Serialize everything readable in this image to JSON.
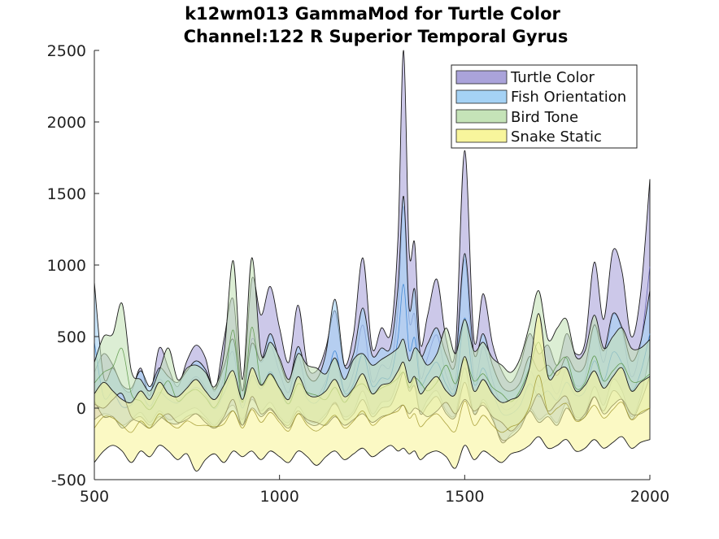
{
  "chart_data": {
    "type": "area",
    "title_lines": [
      "k12wm013 GammaMod for Turtle Color",
      "Channel:122 R Superior Temporal Gyrus"
    ],
    "xlabel": "",
    "ylabel": "",
    "xlim": [
      500,
      2000
    ],
    "ylim": [
      -500,
      2500
    ],
    "xticks": [
      500,
      1000,
      1500,
      2000
    ],
    "yticks": [
      -500,
      0,
      500,
      1000,
      1500,
      2000,
      2500
    ],
    "grid": false,
    "legend_position": "top-right",
    "series": [
      {
        "name": "Turtle Color",
        "color": "#aaa3da",
        "x": [
          500,
          525,
          550,
          575,
          600,
          625,
          650,
          675,
          700,
          725,
          750,
          775,
          800,
          825,
          850,
          875,
          900,
          925,
          950,
          975,
          1000,
          1025,
          1050,
          1075,
          1100,
          1125,
          1150,
          1175,
          1200,
          1225,
          1250,
          1275,
          1300,
          1320,
          1335,
          1350,
          1365,
          1380,
          1400,
          1425,
          1450,
          1475,
          1500,
          1525,
          1550,
          1575,
          1600,
          1625,
          1650,
          1675,
          1700,
          1725,
          1750,
          1775,
          1800,
          1825,
          1850,
          1875,
          1900,
          1925,
          1950,
          1975,
          2000
        ],
        "upper": [
          250,
          380,
          300,
          150,
          120,
          280,
          90,
          420,
          280,
          150,
          330,
          440,
          350,
          120,
          480,
          760,
          120,
          900,
          650,
          850,
          560,
          320,
          720,
          300,
          260,
          420,
          680,
          300,
          520,
          1050,
          420,
          560,
          530,
          1200,
          2500,
          1100,
          1150,
          450,
          650,
          900,
          480,
          420,
          1800,
          480,
          800,
          450,
          260,
          180,
          300,
          520,
          380,
          440,
          300,
          520,
          380,
          460,
          1020,
          620,
          1100,
          950,
          500,
          800,
          1600
        ],
        "lower": [
          -80,
          -40,
          -60,
          -120,
          -80,
          -30,
          -100,
          -20,
          -80,
          -60,
          -20,
          0,
          -60,
          -120,
          -40,
          20,
          -80,
          60,
          -20,
          40,
          -60,
          -100,
          10,
          -80,
          -100,
          -40,
          30,
          -60,
          -20,
          120,
          -40,
          40,
          60,
          200,
          320,
          140,
          160,
          -20,
          60,
          120,
          -20,
          -40,
          280,
          -40,
          60,
          -60,
          -240,
          -180,
          -120,
          0,
          -80,
          -40,
          -100,
          40,
          -60,
          -40,
          150,
          20,
          200,
          120,
          -60,
          80,
          380
        ],
        "line": [
          80,
          170,
          120,
          10,
          20,
          120,
          -10,
          200,
          100,
          40,
          150,
          220,
          140,
          0,
          220,
          390,
          20,
          480,
          320,
          440,
          250,
          110,
          360,
          110,
          80,
          190,
          350,
          120,
          250,
          580,
          190,
          300,
          300,
          700,
          1410,
          620,
          650,
          215,
          355,
          510,
          230,
          190,
          1040,
          220,
          430,
          195,
          10,
          0,
          90,
          260,
          150,
          200,
          100,
          280,
          160,
          210,
          585,
          320,
          650,
          535,
          220,
          440,
          990
        ]
      },
      {
        "name": "Fish Orientation",
        "color": "#a5d2f5",
        "x": [
          500,
          525,
          550,
          575,
          600,
          625,
          650,
          675,
          700,
          725,
          750,
          775,
          800,
          825,
          850,
          875,
          900,
          925,
          950,
          975,
          1000,
          1025,
          1050,
          1075,
          1100,
          1125,
          1150,
          1175,
          1200,
          1225,
          1250,
          1275,
          1300,
          1320,
          1335,
          1350,
          1365,
          1380,
          1400,
          1425,
          1450,
          1475,
          1500,
          1525,
          1550,
          1575,
          1600,
          1625,
          1650,
          1675,
          1700,
          1725,
          1750,
          1775,
          1800,
          1825,
          1850,
          1875,
          1900,
          1925,
          1950,
          1975,
          2000
        ],
        "upper": [
          880,
          220,
          280,
          160,
          140,
          260,
          150,
          280,
          220,
          180,
          260,
          330,
          270,
          130,
          290,
          480,
          120,
          450,
          330,
          520,
          330,
          180,
          430,
          230,
          200,
          380,
          760,
          300,
          380,
          700,
          370,
          420,
          430,
          850,
          1480,
          700,
          830,
          380,
          450,
          560,
          370,
          320,
          1080,
          380,
          520,
          300,
          150,
          120,
          180,
          360,
          260,
          300,
          230,
          360,
          260,
          300,
          580,
          400,
          660,
          560,
          330,
          460,
          820
        ],
        "lower": [
          50,
          -60,
          -60,
          -140,
          -90,
          -60,
          -120,
          -60,
          -100,
          -110,
          -60,
          -40,
          -80,
          -140,
          -80,
          -20,
          -120,
          0,
          -60,
          -10,
          -80,
          -120,
          -20,
          -100,
          -120,
          -60,
          40,
          -80,
          -40,
          60,
          -60,
          0,
          20,
          140,
          250,
          120,
          150,
          -40,
          20,
          80,
          -40,
          -60,
          180,
          -40,
          40,
          -80,
          -220,
          -200,
          -140,
          -20,
          -100,
          -60,
          -120,
          0,
          -80,
          -60,
          80,
          -20,
          120,
          60,
          -80,
          40,
          220
        ],
        "line": [
          460,
          80,
          110,
          10,
          25,
          100,
          15,
          110,
          60,
          35,
          100,
          145,
          95,
          -5,
          105,
          230,
          0,
          225,
          135,
          255,
          125,
          30,
          205,
          65,
          40,
          160,
          400,
          110,
          170,
          380,
          155,
          210,
          225,
          495,
          865,
          410,
          490,
          170,
          235,
          320,
          165,
          130,
          630,
          170,
          280,
          110,
          -35,
          -40,
          20,
          170,
          80,
          120,
          55,
          180,
          90,
          120,
          330,
          190,
          390,
          310,
          125,
          250,
          520
        ]
      },
      {
        "name": "Bird Tone",
        "color": "#c5e3b8",
        "x": [
          500,
          525,
          550,
          575,
          600,
          625,
          650,
          675,
          700,
          725,
          750,
          775,
          800,
          825,
          850,
          875,
          900,
          925,
          950,
          975,
          1000,
          1025,
          1050,
          1075,
          1100,
          1125,
          1150,
          1175,
          1200,
          1225,
          1250,
          1275,
          1300,
          1320,
          1335,
          1350,
          1365,
          1380,
          1400,
          1425,
          1450,
          1475,
          1500,
          1525,
          1550,
          1575,
          1600,
          1625,
          1650,
          1675,
          1700,
          1725,
          1750,
          1775,
          1800,
          1825,
          1850,
          1875,
          1900,
          1925,
          1950,
          1975,
          2000
        ],
        "upper": [
          320,
          500,
          520,
          730,
          260,
          200,
          120,
          260,
          420,
          200,
          280,
          300,
          250,
          150,
          380,
          1030,
          200,
          1050,
          380,
          460,
          350,
          200,
          380,
          300,
          280,
          240,
          350,
          200,
          340,
          380,
          300,
          340,
          380,
          420,
          480,
          330,
          420,
          380,
          300,
          380,
          560,
          380,
          620,
          400,
          460,
          350,
          300,
          250,
          350,
          580,
          820,
          480,
          560,
          620,
          360,
          400,
          650,
          420,
          500,
          560,
          420,
          420,
          480
        ],
        "lower": [
          30,
          0,
          60,
          100,
          -60,
          -100,
          -140,
          -80,
          -40,
          -100,
          -80,
          -40,
          -100,
          -140,
          -60,
          60,
          -120,
          80,
          -40,
          0,
          -80,
          -140,
          -40,
          -80,
          -100,
          -120,
          -60,
          -120,
          -80,
          -40,
          -100,
          -60,
          -40,
          0,
          20,
          -40,
          0,
          -20,
          -60,
          -20,
          40,
          -40,
          60,
          -20,
          20,
          -60,
          -100,
          -160,
          -100,
          -20,
          100,
          -20,
          40,
          80,
          -80,
          -40,
          80,
          -40,
          20,
          60,
          -40,
          -40,
          0
        ],
        "line": [
          175,
          250,
          290,
          415,
          100,
          50,
          -10,
          90,
          190,
          50,
          100,
          130,
          75,
          5,
          160,
          545,
          40,
          565,
          170,
          230,
          135,
          30,
          170,
          110,
          90,
          60,
          145,
          40,
          130,
          170,
          100,
          140,
          170,
          210,
          250,
          145,
          210,
          180,
          120,
          180,
          300,
          170,
          340,
          190,
          240,
          145,
          100,
          45,
          125,
          280,
          460,
          230,
          300,
          350,
          140,
          180,
          365,
          190,
          260,
          310,
          190,
          190,
          240
        ]
      },
      {
        "name": "Snake Static",
        "color": "#f8f59c",
        "x": [
          500,
          525,
          550,
          575,
          600,
          625,
          650,
          675,
          700,
          725,
          750,
          775,
          800,
          825,
          850,
          875,
          900,
          925,
          950,
          975,
          1000,
          1025,
          1050,
          1075,
          1100,
          1125,
          1150,
          1175,
          1200,
          1225,
          1250,
          1275,
          1300,
          1320,
          1335,
          1350,
          1365,
          1380,
          1400,
          1425,
          1450,
          1475,
          1500,
          1525,
          1550,
          1575,
          1600,
          1625,
          1650,
          1675,
          1700,
          1725,
          1750,
          1775,
          1800,
          1825,
          1850,
          1875,
          1900,
          1925,
          1950,
          1975,
          2000
        ],
        "upper": [
          100,
          180,
          120,
          60,
          40,
          120,
          60,
          180,
          100,
          80,
          140,
          200,
          120,
          60,
          160,
          260,
          60,
          280,
          160,
          240,
          140,
          60,
          220,
          100,
          80,
          120,
          200,
          80,
          140,
          240,
          100,
          160,
          180,
          260,
          320,
          180,
          220,
          100,
          160,
          220,
          120,
          100,
          360,
          120,
          200,
          100,
          40,
          60,
          100,
          280,
          660,
          220,
          260,
          280,
          120,
          160,
          260,
          140,
          220,
          280,
          120,
          180,
          220
        ],
        "lower": [
          -380,
          -300,
          -260,
          -300,
          -380,
          -300,
          -340,
          -260,
          -300,
          -360,
          -320,
          -440,
          -360,
          -320,
          -380,
          -300,
          -340,
          -300,
          -360,
          -300,
          -340,
          -380,
          -300,
          -340,
          -400,
          -340,
          -300,
          -360,
          -320,
          -280,
          -340,
          -300,
          -260,
          -300,
          -280,
          -320,
          -300,
          -360,
          -320,
          -300,
          -340,
          -420,
          -260,
          -360,
          -300,
          -340,
          -380,
          -320,
          -300,
          -260,
          -200,
          -280,
          -260,
          -220,
          -300,
          -280,
          -220,
          -280,
          -240,
          -200,
          -280,
          -240,
          -220
        ],
        "line": [
          -140,
          -60,
          -70,
          -120,
          -170,
          -90,
          -140,
          -40,
          -100,
          -140,
          -90,
          -120,
          -120,
          -130,
          -110,
          -20,
          -140,
          -10,
          -100,
          -30,
          -100,
          -160,
          -40,
          -120,
          -160,
          -110,
          -50,
          -140,
          -90,
          -20,
          -120,
          -70,
          -40,
          -20,
          20,
          -70,
          -40,
          -130,
          -80,
          -40,
          -110,
          -160,
          50,
          -120,
          -50,
          -120,
          -170,
          -130,
          -100,
          10,
          230,
          -30,
          0,
          30,
          -90,
          -60,
          20,
          -70,
          -10,
          40,
          -80,
          -30,
          0
        ]
      }
    ]
  }
}
